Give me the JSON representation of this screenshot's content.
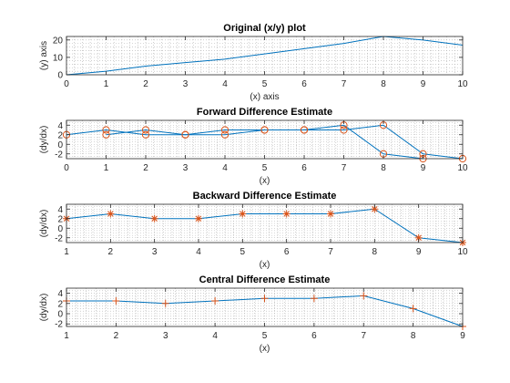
{
  "colors": {
    "line": "#0072BD",
    "marker": "#D95319",
    "axis": "#262626",
    "grid": "#b0b0b0"
  },
  "chart_data": [
    {
      "type": "line",
      "title": "Original (x/y) plot",
      "xlabel": "(x) axis",
      "ylabel": "(y) axis",
      "xlim": [
        0,
        10
      ],
      "ylim": [
        0,
        22
      ],
      "xticks": [
        0,
        1,
        2,
        3,
        4,
        5,
        6,
        7,
        8,
        9,
        10
      ],
      "yticks": [
        0,
        10,
        20
      ],
      "grid": "minor",
      "marker": "none",
      "series": [
        {
          "x": [
            0,
            1,
            2,
            3,
            4,
            5,
            6,
            7,
            8,
            9,
            10
          ],
          "y": [
            0,
            2,
            5,
            7,
            9,
            12,
            15,
            18,
            22,
            20,
            17
          ]
        }
      ]
    },
    {
      "type": "line",
      "title": "Forward Difference Estimate",
      "xlabel": "(x)",
      "ylabel": "(dy/dx)",
      "xlim": [
        0,
        10
      ],
      "ylim": [
        -3,
        5
      ],
      "xticks": [
        0,
        1,
        2,
        3,
        4,
        5,
        6,
        7,
        8,
        9,
        10
      ],
      "yticks": [
        -2,
        0,
        2,
        4
      ],
      "grid": "minor",
      "marker": "o",
      "series": [
        {
          "x": [
            0,
            1,
            2,
            3,
            4,
            5,
            6,
            7,
            8,
            9
          ],
          "y": [
            2,
            3,
            2,
            2,
            3,
            3,
            3,
            4,
            -2,
            -3
          ]
        },
        {
          "x": [
            1,
            2,
            3,
            4,
            5,
            6,
            7,
            8,
            9,
            10
          ],
          "y": [
            2,
            3,
            2,
            2,
            3,
            3,
            3,
            4,
            -2,
            -3
          ]
        }
      ]
    },
    {
      "type": "line",
      "title": "Backward Difference Estimate",
      "xlabel": "(x)",
      "ylabel": "(dy/dx)",
      "xlim": [
        1,
        10
      ],
      "ylim": [
        -3,
        5
      ],
      "xticks": [
        1,
        2,
        3,
        4,
        5,
        6,
        7,
        8,
        9,
        10
      ],
      "yticks": [
        -2,
        0,
        2,
        4
      ],
      "grid": "minor",
      "marker": "*",
      "series": [
        {
          "x": [
            1,
            2,
            3,
            4,
            5,
            6,
            7,
            8,
            9,
            10
          ],
          "y": [
            2,
            3,
            2,
            2,
            3,
            3,
            3,
            4,
            -2,
            -3
          ]
        }
      ]
    },
    {
      "type": "line",
      "title": "Central Difference Estimate",
      "xlabel": "(x)",
      "ylabel": "(dy/dx)",
      "xlim": [
        1,
        9
      ],
      "ylim": [
        -2.5,
        5
      ],
      "xticks": [
        1,
        2,
        3,
        4,
        5,
        6,
        7,
        8,
        9
      ],
      "yticks": [
        -2,
        0,
        2,
        4
      ],
      "grid": "minor",
      "marker": "+",
      "series": [
        {
          "x": [
            1,
            2,
            3,
            4,
            5,
            6,
            7,
            8,
            9
          ],
          "y": [
            2.5,
            2.5,
            2,
            2.5,
            3,
            3,
            3.5,
            1,
            -2.5
          ]
        }
      ]
    }
  ]
}
